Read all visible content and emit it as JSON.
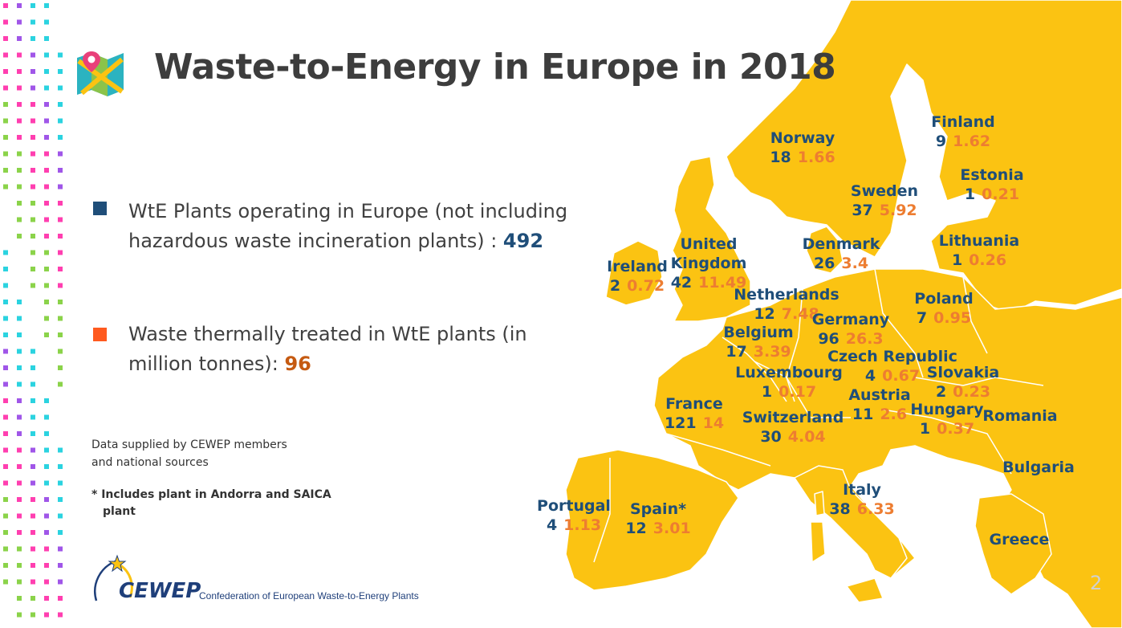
{
  "title": "Waste-to-Energy in Europe in 2018",
  "colors": {
    "map_land": "#fbc312",
    "map_border": "#ffffff",
    "plants_blue": "#1f4e79",
    "waste_orange": "#ed7d31",
    "legend_orange": "#ff5a1f"
  },
  "legend": {
    "plants_text": "WtE Plants operating in Europe (not including hazardous waste incineration plants) : ",
    "plants_value": "492",
    "waste_text": "Waste thermally treated in WtE plants (in million tonnes): ",
    "waste_value": "96"
  },
  "source": {
    "line1": "Data supplied by CEWEP members",
    "line2": "and national sources"
  },
  "footnote": {
    "line1": "* Includes plant in Andorra and SAICA",
    "line2": "plant"
  },
  "logo": {
    "word": "CEWEP",
    "tagline": "Confederation of European Waste-to-Energy Plants"
  },
  "page_number": "2",
  "countries": [
    {
      "name": "Norway",
      "plants": "18",
      "waste": "1.66"
    },
    {
      "name": "Finland",
      "plants": "9",
      "waste": "1.62"
    },
    {
      "name": "Estonia",
      "plants": "1",
      "waste": "0.21"
    },
    {
      "name": "Sweden",
      "plants": "37",
      "waste": "5.92"
    },
    {
      "name": "Denmark",
      "plants": "26",
      "waste": "3.4"
    },
    {
      "name": "Lithuania",
      "plants": "1",
      "waste": "0.26"
    },
    {
      "name": "Ireland",
      "plants": "2",
      "waste": "0.72"
    },
    {
      "name": "United Kingdom",
      "plants": "42",
      "waste": "11.49"
    },
    {
      "name": "Netherlands",
      "plants": "12",
      "waste": "7.48"
    },
    {
      "name": "Poland",
      "plants": "7",
      "waste": "0.95"
    },
    {
      "name": "Germany",
      "plants": "96",
      "waste": "26.3"
    },
    {
      "name": "Belgium",
      "plants": "17",
      "waste": "3.39"
    },
    {
      "name": "Czech Republic",
      "plants": "4",
      "waste": "0.67"
    },
    {
      "name": "Luxembourg",
      "plants": "1",
      "waste": "0.17"
    },
    {
      "name": "Slovakia",
      "plants": "2",
      "waste": "0.23"
    },
    {
      "name": "Austria",
      "plants": "11",
      "waste": "2.6"
    },
    {
      "name": "France",
      "plants": "121",
      "waste": "14"
    },
    {
      "name": "Hungary",
      "plants": "1",
      "waste": "0.37"
    },
    {
      "name": "Switzerland",
      "plants": "30",
      "waste": "4.04"
    },
    {
      "name": "Romania",
      "plants": "",
      "waste": ""
    },
    {
      "name": "Bulgaria",
      "plants": "",
      "waste": ""
    },
    {
      "name": "Italy",
      "plants": "38",
      "waste": "6.33"
    },
    {
      "name": "Portugal",
      "plants": "4",
      "waste": "1.13"
    },
    {
      "name": "Spain*",
      "plants": "12",
      "waste": "3.01"
    },
    {
      "name": "Greece",
      "plants": "",
      "waste": ""
    }
  ]
}
